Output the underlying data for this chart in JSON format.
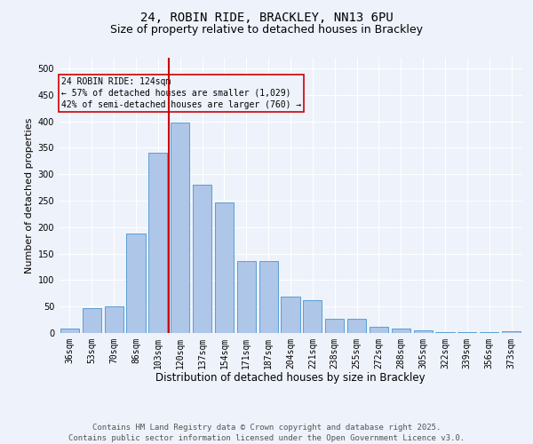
{
  "title1": "24, ROBIN RIDE, BRACKLEY, NN13 6PU",
  "title2": "Size of property relative to detached houses in Brackley",
  "xlabel": "Distribution of detached houses by size in Brackley",
  "ylabel": "Number of detached properties",
  "categories": [
    "36sqm",
    "53sqm",
    "70sqm",
    "86sqm",
    "103sqm",
    "120sqm",
    "137sqm",
    "154sqm",
    "171sqm",
    "187sqm",
    "204sqm",
    "221sqm",
    "238sqm",
    "255sqm",
    "272sqm",
    "288sqm",
    "305sqm",
    "322sqm",
    "339sqm",
    "356sqm",
    "373sqm"
  ],
  "values": [
    9,
    47,
    50,
    188,
    340,
    398,
    280,
    247,
    136,
    136,
    68,
    62,
    27,
    27,
    12,
    8,
    5,
    2,
    1,
    1,
    4
  ],
  "bar_color": "#aec6e8",
  "bar_edge_color": "#5a9fd4",
  "vline_color": "#cc0000",
  "ylim": [
    0,
    520
  ],
  "yticks": [
    0,
    50,
    100,
    150,
    200,
    250,
    300,
    350,
    400,
    450,
    500
  ],
  "annotation_title": "24 ROBIN RIDE: 124sqm",
  "annotation_line1": "← 57% of detached houses are smaller (1,029)",
  "annotation_line2": "42% of semi-detached houses are larger (760) →",
  "annotation_box_color": "#cc0000",
  "footer_line1": "Contains HM Land Registry data © Crown copyright and database right 2025.",
  "footer_line2": "Contains public sector information licensed under the Open Government Licence v3.0.",
  "bg_color": "#eef2fb",
  "grid_color": "#ffffff",
  "title1_fontsize": 10,
  "title2_fontsize": 9,
  "xlabel_fontsize": 8.5,
  "ylabel_fontsize": 8,
  "tick_fontsize": 7,
  "footer_fontsize": 6.5
}
